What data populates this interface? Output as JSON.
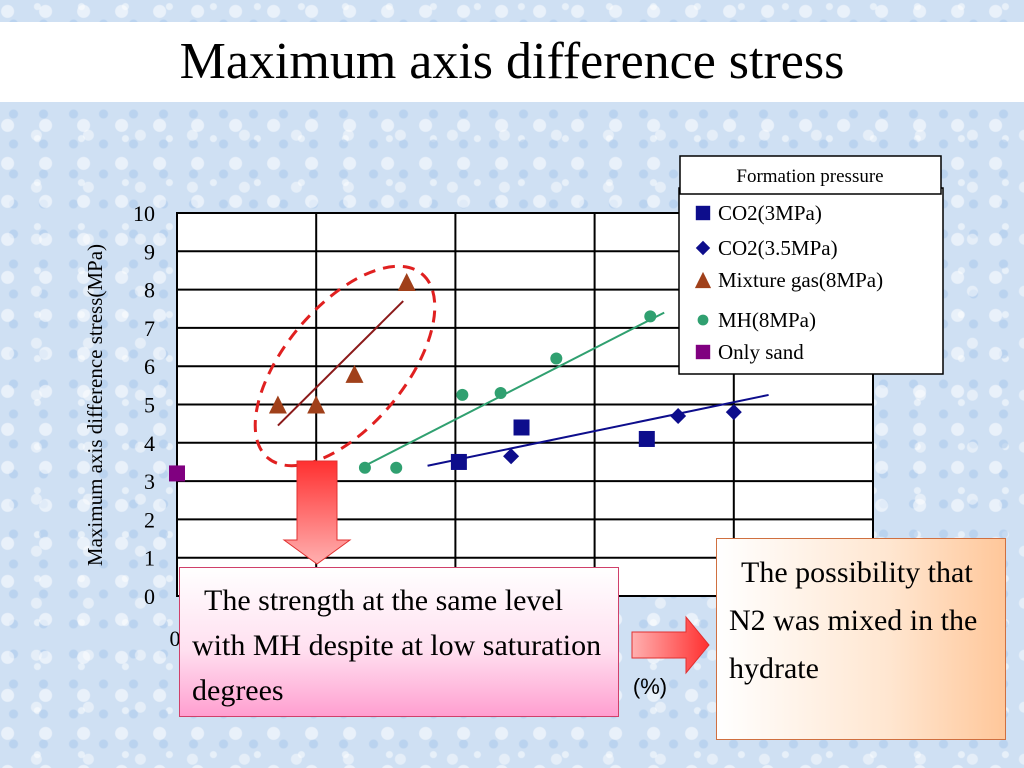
{
  "title": "Maximum axis difference stress",
  "chart_data": {
    "type": "scatter",
    "ylabel": "Maximum axis difference stress(MPa)",
    "xlabel_partial": "(%)",
    "x_tick_first": "0",
    "ylim": [
      0,
      10
    ],
    "y_ticks": [
      "10",
      "9",
      "8",
      "7",
      "6",
      "5",
      "4",
      "3",
      "2",
      "1",
      "0"
    ],
    "xlim": [
      0,
      100
    ],
    "grid": true,
    "legend_title": "Formation pressure",
    "legend_placement": "top-right",
    "series": [
      {
        "name": "CO2(3MPa)",
        "marker": "square",
        "color": "#0d0d8c",
        "points": [
          [
            40.5,
            3.5
          ],
          [
            49.5,
            4.4
          ],
          [
            67.5,
            4.1
          ]
        ]
      },
      {
        "name": "CO2(3.5MPa)",
        "marker": "diamond",
        "color": "#0d0d8c",
        "points": [
          [
            48,
            3.65
          ],
          [
            72,
            4.7
          ],
          [
            80,
            4.8
          ]
        ]
      },
      {
        "name": "Mixture gas(8MPa)",
        "marker": "triangle",
        "color": "#a0401a",
        "points": [
          [
            14.5,
            5.0
          ],
          [
            20,
            5.0
          ],
          [
            25.5,
            5.8
          ],
          [
            33,
            8.2
          ]
        ]
      },
      {
        "name": "MH(8MPa)",
        "marker": "circle",
        "color": "#30a070",
        "points": [
          [
            27,
            3.35
          ],
          [
            31.5,
            3.35
          ],
          [
            41,
            5.25
          ],
          [
            46.5,
            5.3
          ],
          [
            54.5,
            6.2
          ],
          [
            68,
            7.3
          ]
        ]
      },
      {
        "name": "Only sand",
        "marker": "square",
        "color": "#800080",
        "points": [
          [
            0,
            3.2
          ]
        ]
      }
    ],
    "trend_lines": [
      {
        "series": "CO2(3.5MPa)",
        "color": "#0d0d8c",
        "from": [
          36,
          3.4
        ],
        "to": [
          85,
          5.25
        ]
      },
      {
        "series": "MH(8MPa)",
        "color": "#30a070",
        "from": [
          27,
          3.4
        ],
        "to": [
          70,
          7.4
        ]
      },
      {
        "series": "Mixture gas(8MPa)",
        "color": "#8b1a1a",
        "from": [
          14.5,
          4.45
        ],
        "to": [
          32.5,
          7.7
        ]
      }
    ],
    "highlight": {
      "shape": "dashed-ellipse",
      "color": "#e02020",
      "around": "Mixture gas(8MPa)"
    }
  },
  "callouts": {
    "left": "The strength at the same level with MH despite at low saturation degrees",
    "right": "The possibility that N2 was mixed in the hydrate"
  },
  "arrows": {
    "color": "#ff4040",
    "down_icon": "arrow-down-icon",
    "right_icon": "arrow-right-icon"
  }
}
